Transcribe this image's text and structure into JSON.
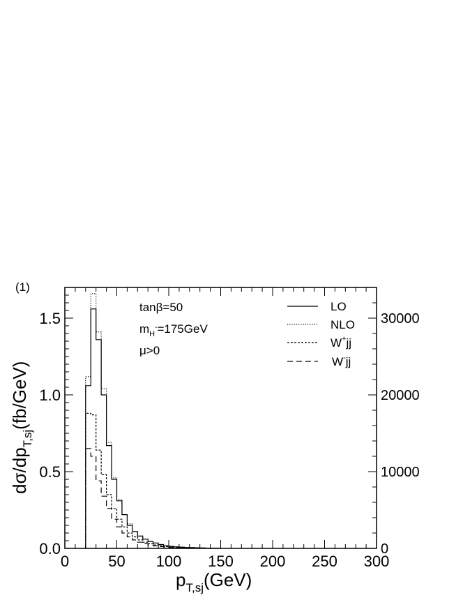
{
  "panel_label": "(1)",
  "annotations": [
    "tanβ=50",
    "m_H⁻=175GeV",
    "μ>0"
  ],
  "chart_data": {
    "type": "histogram",
    "xlabel": "p_{T,sj}(GeV)",
    "ylabel": "dσ/dp_{T,sj}(fb/GeV)",
    "xlim": [
      0,
      300
    ],
    "ylim_left": [
      0,
      1.7
    ],
    "ylim_right": [
      0,
      34000
    ],
    "x_ticks": [
      0,
      50,
      100,
      150,
      200,
      250,
      300
    ],
    "y_ticks_left": [
      "0.0",
      "0.5",
      "1.0",
      "1.5"
    ],
    "y_ticks_right": [
      "0",
      "10000",
      "20000",
      "30000"
    ],
    "grid": false,
    "legend_placement": "top-right",
    "bin_edges": [
      20,
      25,
      30,
      35,
      40,
      45,
      50,
      55,
      60,
      65,
      70,
      75,
      80,
      85,
      90,
      95,
      100,
      105,
      110,
      115,
      120,
      125,
      130,
      135,
      140,
      145,
      150
    ],
    "series": [
      {
        "name": "LO",
        "axis": "left",
        "style": "solid",
        "values": [
          1.06,
          1.56,
          1.36,
          1.0,
          0.67,
          0.45,
          0.31,
          0.22,
          0.15,
          0.11,
          0.08,
          0.06,
          0.045,
          0.035,
          0.025,
          0.018,
          0.013,
          0.01,
          0.008,
          0.006,
          0.005,
          0.004,
          0.003,
          0.002,
          0.002,
          0.001
        ]
      },
      {
        "name": "NLO",
        "axis": "left",
        "style": "dotted",
        "values": [
          1.12,
          1.66,
          1.41,
          1.04,
          0.69,
          0.46,
          0.32,
          0.22,
          0.16,
          0.11,
          0.08,
          0.06,
          0.045,
          0.035,
          0.025,
          0.018,
          0.013,
          0.01,
          0.008,
          0.006,
          0.005,
          0.004,
          0.003,
          0.002,
          0.002,
          0.001
        ]
      },
      {
        "name": "W⁺jj",
        "axis": "right",
        "style": "short-dash",
        "values": [
          17600,
          17400,
          12800,
          9600,
          7000,
          5200,
          3800,
          2800,
          2000,
          1500,
          1100,
          800,
          600,
          450,
          320,
          230,
          170,
          120,
          90,
          60,
          40,
          30,
          20,
          15,
          10,
          8
        ]
      },
      {
        "name": "W⁻jj",
        "axis": "right",
        "style": "long-dash",
        "values": [
          13000,
          12000,
          8800,
          6800,
          5200,
          3800,
          2800,
          2000,
          1500,
          1100,
          800,
          600,
          450,
          330,
          240,
          170,
          120,
          90,
          65,
          45,
          30,
          22,
          15,
          10,
          8,
          5
        ]
      }
    ]
  }
}
